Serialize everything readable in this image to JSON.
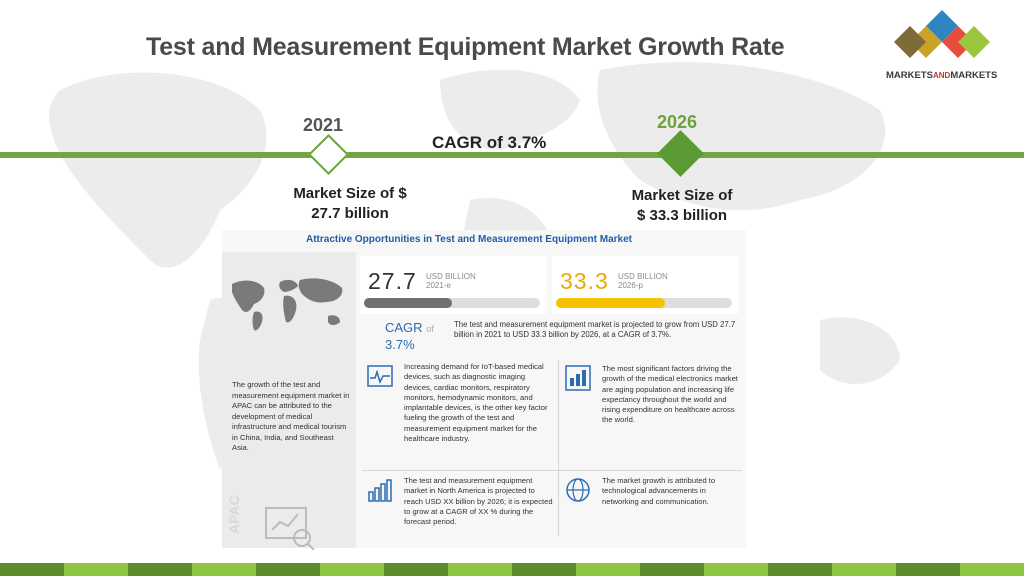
{
  "title": "Test and Measurement Equipment Market Growth Rate",
  "logo": {
    "text_main": "MARKETS",
    "text_and": "AND",
    "text_end": "MARKETS",
    "colors": [
      "#2e86c1",
      "#e74c3c",
      "#9bc53d",
      "#c9a227"
    ]
  },
  "timeline": {
    "start_year": "2021",
    "end_year": "2026",
    "cagr_label": "CAGR of 3.7%",
    "start_size_line1": "Market Size of $",
    "start_size_line2": "27.7 billion",
    "end_size_line1": "Market Size of",
    "end_size_line2": "$ 33.3 billion",
    "accent": "#6aa33b"
  },
  "panel": {
    "title": "Attractive Opportunities in Test and Measurement Equipment Market",
    "stat_2021": {
      "value": "27.7",
      "unit": "USD BILLION",
      "year": "2021-e",
      "fill": 0.5
    },
    "stat_2026": {
      "value": "33.3",
      "unit": "USD BILLION",
      "year": "2026-p",
      "fill": 0.62
    },
    "cagr_small_label": "CAGR",
    "cagr_small_of": "of",
    "cagr_small_value": "3.7%",
    "cagr_desc": "The test and measurement equipment market is projected to grow from USD 27.7 billion in 2021 to USD 33.3 billion by 2026, at a CAGR of 3.7%.",
    "apac_text": "The growth of the test and measurement equipment market in APAC can be attributed to the development of medical infrastructure and medical tourism in China, India, and Southeast Asia.",
    "apac_label": "APAC",
    "card1": "Increasing demand for IoT-based medical devices, such as diagnostic imaging devices, cardiac monitors, respiratory monitors, hemodynamic monitors, and implantable devices, is the other key factor fueling the growth of the test and measurement equipment market for the healthcare industry.",
    "card2": "The most significant factors driving the growth of the medical electronics market are aging population and increasing life expectancy throughout the world and rising expenditure on healthcare across the world.",
    "card3": "The test and measurement equipment market in North America is projected to reach USD XX billion by 2026; it is expected to grow at a CAGR of XX % during the forecast period.",
    "card4": "The market growth is attributed to technological advancements in networking and communication."
  },
  "stripe_colors": [
    "#5d8c2f",
    "#8dc63f"
  ]
}
